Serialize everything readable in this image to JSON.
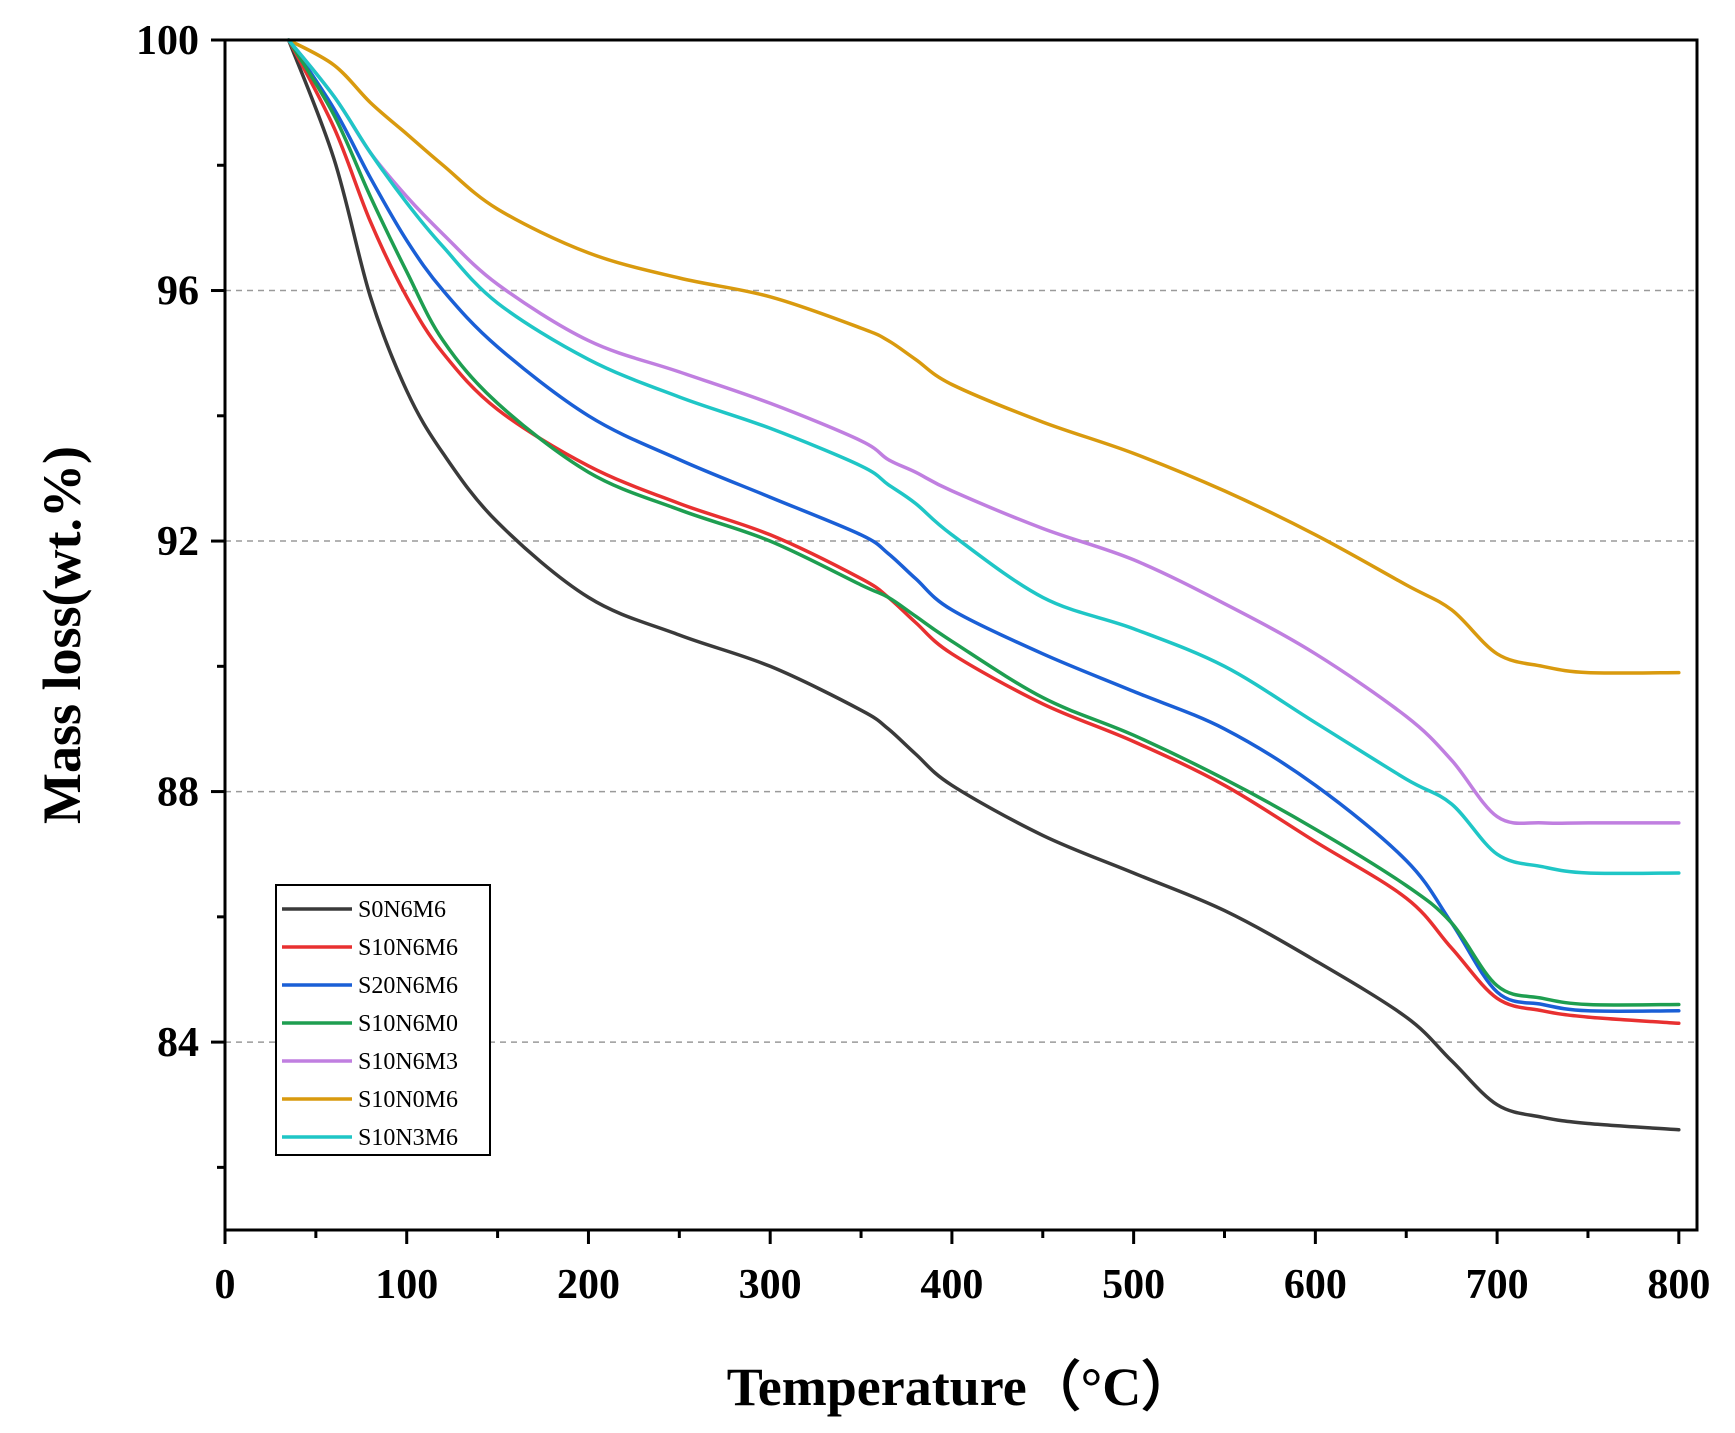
{
  "chart_data": {
    "type": "line",
    "title": "",
    "xlabel": "Temperature（°C）",
    "ylabel": "Mass loss(wt.%)",
    "xlim": [
      0,
      810
    ],
    "ylim": [
      81,
      100
    ],
    "x_ticks": [
      0,
      100,
      200,
      300,
      400,
      500,
      600,
      700,
      800
    ],
    "y_ticks": [
      84,
      88,
      92,
      96,
      100
    ],
    "grid": "dashed horizontal at y ticks",
    "legend_position": "bottom-left",
    "x": [
      35,
      60,
      80,
      100,
      120,
      150,
      200,
      250,
      300,
      350,
      365,
      380,
      400,
      450,
      500,
      550,
      600,
      650,
      675,
      700,
      725,
      750,
      800
    ],
    "series": [
      {
        "name": "S0N6M6",
        "color": "#3a3a3a",
        "values": [
          100,
          98.1,
          95.9,
          94.4,
          93.4,
          92.3,
          91.1,
          90.5,
          90.0,
          89.3,
          89.0,
          88.6,
          88.1,
          87.3,
          86.7,
          86.1,
          85.3,
          84.4,
          83.7,
          83.0,
          82.8,
          82.7,
          82.6
        ]
      },
      {
        "name": "S10N6M6",
        "color": "#e83030",
        "values": [
          100,
          98.6,
          97.1,
          95.9,
          95.0,
          94.1,
          93.2,
          92.6,
          92.1,
          91.4,
          91.1,
          90.7,
          90.2,
          89.4,
          88.8,
          88.1,
          87.2,
          86.3,
          85.5,
          84.7,
          84.5,
          84.4,
          84.3
        ]
      },
      {
        "name": "S20N6M6",
        "color": "#1a5fd6",
        "values": [
          100,
          98.9,
          97.8,
          96.8,
          96.0,
          95.1,
          94.0,
          93.3,
          92.7,
          92.1,
          91.8,
          91.4,
          90.9,
          90.2,
          89.6,
          89.0,
          88.1,
          86.9,
          85.9,
          84.8,
          84.6,
          84.5,
          84.5
        ]
      },
      {
        "name": "S10N6M0",
        "color": "#1e9e50",
        "values": [
          100,
          98.8,
          97.5,
          96.3,
          95.2,
          94.2,
          93.1,
          92.5,
          92.0,
          91.3,
          91.1,
          90.8,
          90.4,
          89.5,
          88.9,
          88.2,
          87.4,
          86.5,
          85.9,
          84.9,
          84.7,
          84.6,
          84.6
        ]
      },
      {
        "name": "S10N6M3",
        "color": "#c07fe0",
        "values": [
          100,
          99.1,
          98.2,
          97.5,
          96.9,
          96.1,
          95.2,
          94.7,
          94.2,
          93.6,
          93.3,
          93.1,
          92.8,
          92.2,
          91.7,
          91.0,
          90.2,
          89.2,
          88.5,
          87.6,
          87.5,
          87.5,
          87.5
        ]
      },
      {
        "name": "S10N0M6",
        "color": "#d99a0e",
        "values": [
          100,
          99.6,
          99.0,
          98.5,
          98.0,
          97.3,
          96.6,
          96.2,
          95.9,
          95.4,
          95.2,
          94.9,
          94.5,
          93.9,
          93.4,
          92.8,
          92.1,
          91.3,
          90.9,
          90.2,
          90.0,
          89.9,
          89.9
        ]
      },
      {
        "name": "S10N3M6",
        "color": "#1fc6c6",
        "values": [
          100,
          99.1,
          98.2,
          97.4,
          96.7,
          95.8,
          94.9,
          94.3,
          93.8,
          93.2,
          92.9,
          92.6,
          92.1,
          91.1,
          90.6,
          90.0,
          89.1,
          88.2,
          87.8,
          87.0,
          86.8,
          86.7,
          86.7
        ]
      }
    ]
  }
}
